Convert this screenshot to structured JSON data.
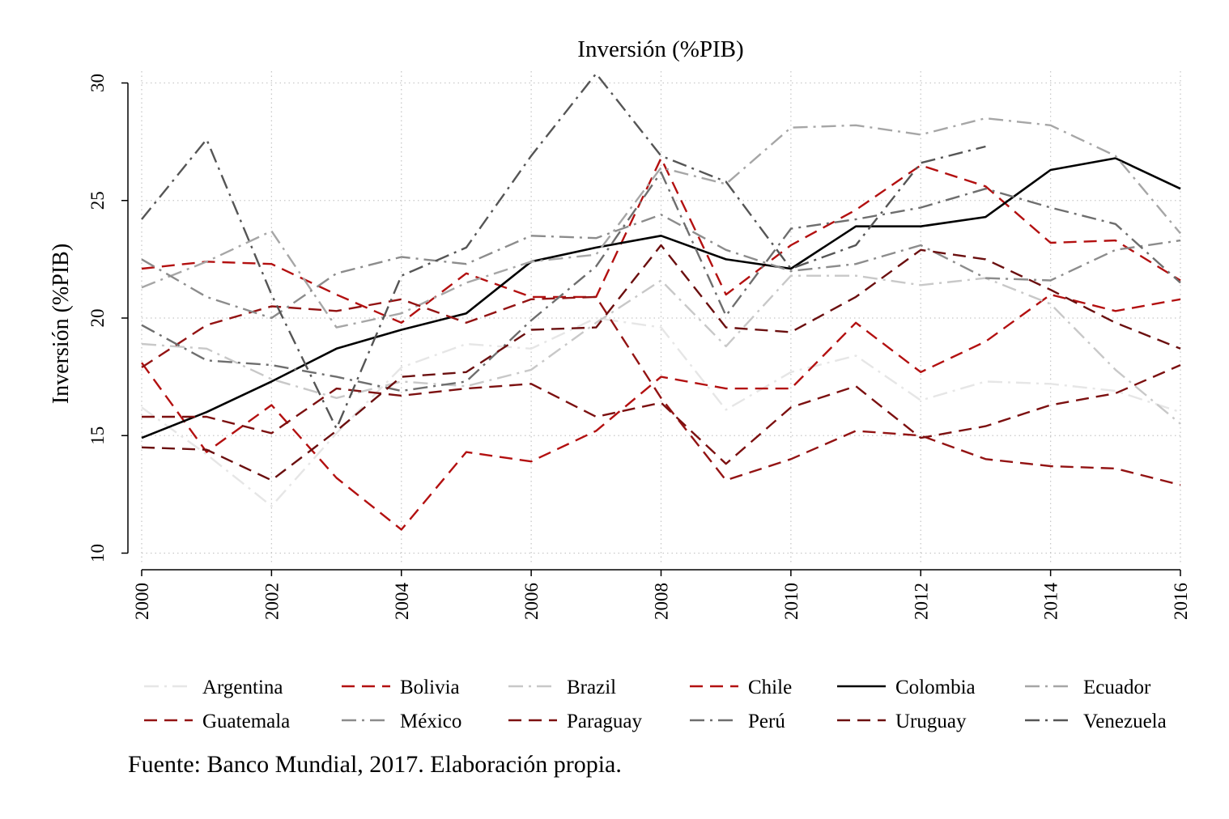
{
  "source_note": "Fuente: Banco Mundial, 2017. Elaboración propia.",
  "chart_data": {
    "type": "line",
    "title": "Inversión (%PIB)",
    "xlabel": "",
    "ylabel": "Inversión (%PIB)",
    "x": [
      2000,
      2001,
      2002,
      2003,
      2004,
      2005,
      2006,
      2007,
      2008,
      2009,
      2010,
      2011,
      2012,
      2013,
      2014,
      2015,
      2016
    ],
    "x_ticks": [
      "2000",
      "2002",
      "2004",
      "2006",
      "2008",
      "2010",
      "2012",
      "2014",
      "2016"
    ],
    "y_ticks": [
      "10",
      "15",
      "20",
      "25",
      "30"
    ],
    "xlim": [
      2000,
      2016
    ],
    "ylim": [
      9.5,
      30.5
    ],
    "grid": true,
    "legend_position": "bottom",
    "series": [
      {
        "name": "Argentina",
        "color": "#e6e6e6",
        "dash": "dashdot",
        "values": [
          16.2,
          14.2,
          12.0,
          15.1,
          17.9,
          18.9,
          18.7,
          20.0,
          19.6,
          16.1,
          17.7,
          18.4,
          16.5,
          17.3,
          17.2,
          16.9,
          16.0
        ]
      },
      {
        "name": "Bolivia",
        "color": "#b31010",
        "dash": "dash",
        "values": [
          18.1,
          14.3,
          16.3,
          13.2,
          11.0,
          14.3,
          13.9,
          15.2,
          17.5,
          17.0,
          17.0,
          19.8,
          17.7,
          19.0,
          21.0,
          20.3,
          20.8
        ]
      },
      {
        "name": "Brazil",
        "color": "#c8c8c8",
        "dash": "dashdot",
        "values": [
          18.9,
          18.7,
          17.4,
          16.6,
          17.3,
          17.1,
          17.8,
          19.8,
          21.6,
          18.8,
          21.8,
          21.8,
          21.4,
          21.7,
          20.6,
          17.8,
          15.5
        ]
      },
      {
        "name": "Chile",
        "color": "#b31010",
        "dash": "dash",
        "values": [
          22.1,
          22.4,
          22.3,
          21.0,
          19.8,
          21.9,
          20.9,
          20.9,
          26.8,
          21.0,
          23.1,
          24.6,
          26.5,
          25.6,
          23.2,
          23.3,
          21.6
        ]
      },
      {
        "name": "Colombia",
        "color": "#000000",
        "dash": "solid",
        "values": [
          14.9,
          16.0,
          17.3,
          18.7,
          19.5,
          20.2,
          22.4,
          23.0,
          23.5,
          22.5,
          22.1,
          23.9,
          23.9,
          24.3,
          26.3,
          26.8,
          25.5
        ]
      },
      {
        "name": "Ecuador",
        "color": "#a6a6a6",
        "dash": "dashdot",
        "values": [
          21.3,
          22.4,
          23.7,
          19.6,
          20.2,
          21.5,
          22.4,
          22.7,
          26.4,
          25.7,
          28.1,
          28.2,
          27.8,
          28.5,
          28.2,
          26.9,
          23.6
        ]
      },
      {
        "name": "Guatemala",
        "color": "#931313",
        "dash": "dash",
        "values": [
          17.9,
          19.7,
          20.5,
          20.3,
          20.8,
          19.8,
          20.8,
          20.9,
          16.6,
          13.1,
          14.0,
          15.2,
          15.0,
          14.0,
          13.7,
          13.6,
          12.9
        ]
      },
      {
        "name": "México",
        "color": "#8c8c8c",
        "dash": "dashdot",
        "values": [
          22.5,
          20.9,
          20.0,
          21.9,
          22.6,
          22.3,
          23.5,
          23.4,
          24.4,
          22.9,
          22.0,
          22.3,
          23.1,
          21.7,
          21.6,
          22.9,
          23.3
        ]
      },
      {
        "name": "Paraguay",
        "color": "#7c1010",
        "dash": "dash",
        "values": [
          15.8,
          15.8,
          15.1,
          17.0,
          16.7,
          17.0,
          17.2,
          15.8,
          16.4,
          13.8,
          16.2,
          17.1,
          14.9,
          15.4,
          16.3,
          16.8,
          18.0
        ]
      },
      {
        "name": "Perú",
        "color": "#6e6e6e",
        "dash": "dashdot",
        "values": [
          19.7,
          18.2,
          18.0,
          17.5,
          16.9,
          17.3,
          19.9,
          22.2,
          26.2,
          20.1,
          23.8,
          24.2,
          24.7,
          25.5,
          24.7,
          24.0,
          21.5
        ]
      },
      {
        "name": "Uruguay",
        "color": "#6b0f0f",
        "dash": "dash",
        "values": [
          14.5,
          14.4,
          13.1,
          15.2,
          17.5,
          17.7,
          19.5,
          19.6,
          23.1,
          19.6,
          19.4,
          20.9,
          22.9,
          22.5,
          21.2,
          19.8,
          18.7
        ]
      },
      {
        "name": "Venezuela",
        "color": "#555555",
        "dash": "dashdot",
        "values": [
          24.2,
          27.6,
          21.0,
          15.3,
          21.8,
          23.0,
          26.9,
          30.4,
          26.9,
          25.8,
          22.1,
          23.1,
          26.6,
          27.3,
          null,
          null,
          null
        ]
      }
    ]
  }
}
